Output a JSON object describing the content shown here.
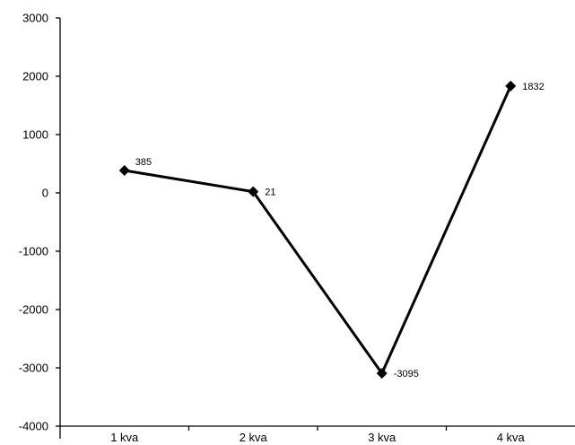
{
  "chart_data": {
    "type": "line",
    "title": "",
    "xlabel": "",
    "ylabel": "",
    "categories": [
      "1 kva",
      "2 kva",
      "3 kva",
      "4 kva"
    ],
    "series": [
      {
        "values": [
          385,
          21,
          -3095,
          1832
        ],
        "data_labels": [
          "385",
          "21",
          "-3095",
          "1832"
        ],
        "color": "#000000",
        "marker": "diamond"
      }
    ],
    "ylim": [
      -4000,
      3000
    ],
    "yticks": [
      "3000",
      "2000",
      "1000",
      "0",
      "-1000",
      "-2000",
      "-3000",
      "-4000"
    ],
    "grid": false,
    "legend": "none"
  }
}
